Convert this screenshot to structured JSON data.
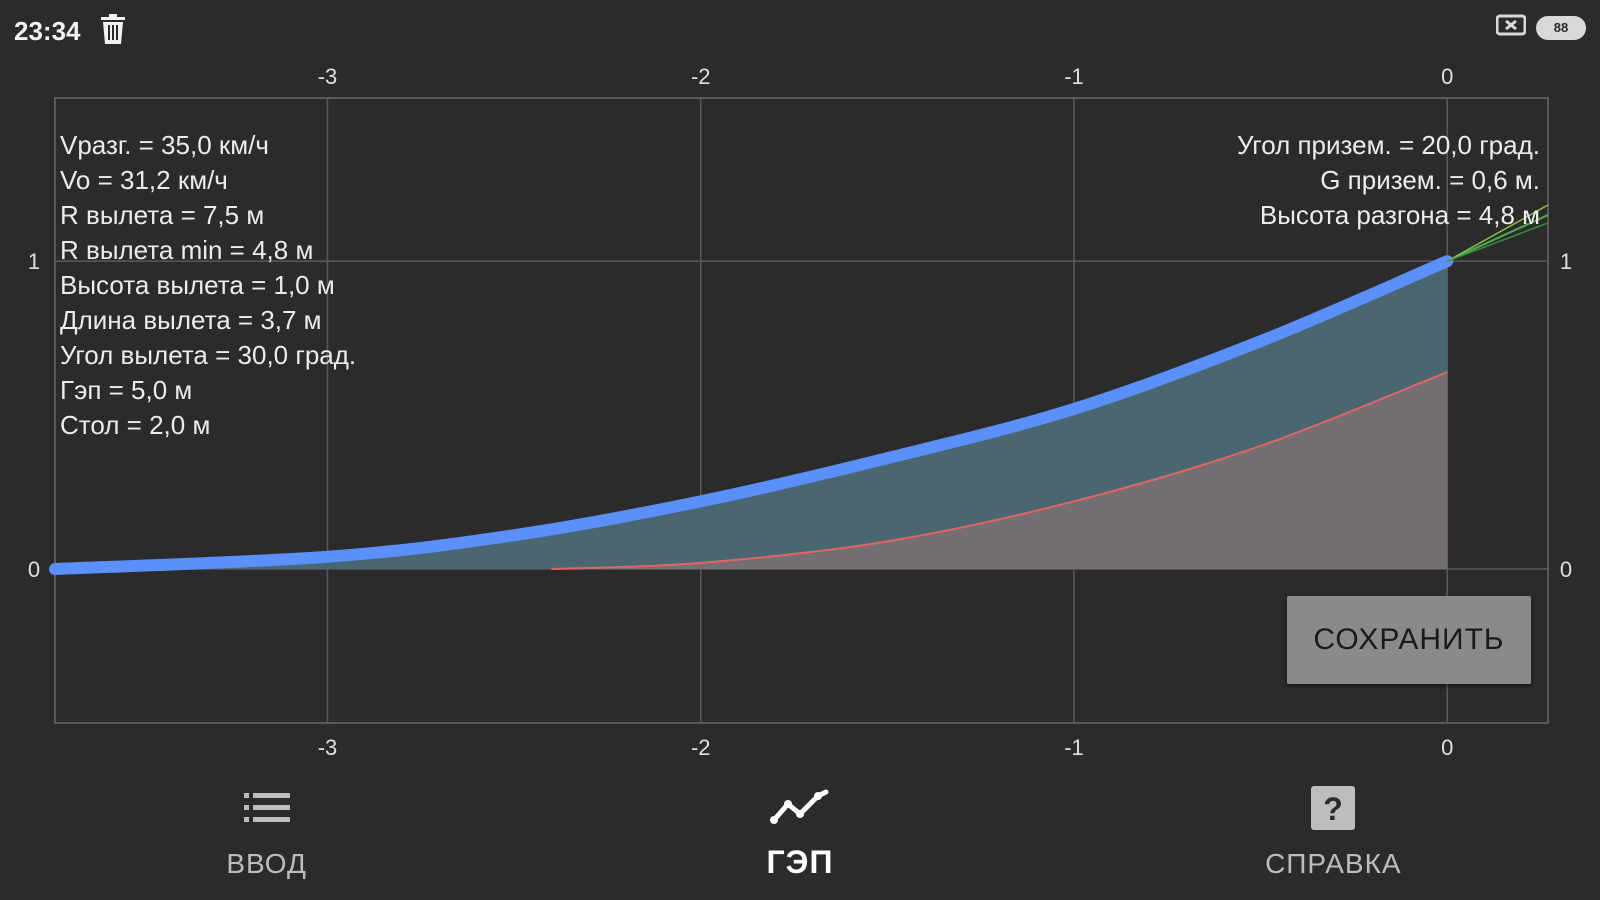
{
  "status": {
    "time": "23:34",
    "battery": "88"
  },
  "chart_data": {
    "type": "area",
    "x_ticks": [
      "-3",
      "-2",
      "-1",
      "0"
    ],
    "y_ticks": [
      "0",
      "1"
    ],
    "xlim": [
      -3.73,
      0.27
    ],
    "ylim": [
      -0.5,
      1.53
    ],
    "series": [
      {
        "color": "#5b8ff9",
        "x": [
          -3.73,
          -3.0,
          -2.5,
          -2.0,
          -1.5,
          -1.0,
          -0.5,
          0.0
        ],
        "y": [
          0.0,
          0.04,
          0.11,
          0.22,
          0.36,
          0.52,
          0.74,
          1.0
        ]
      },
      {
        "color": "#e06666",
        "x": [
          -2.4,
          -2.0,
          -1.5,
          -1.0,
          -0.5,
          0.0
        ],
        "y": [
          0.0,
          0.02,
          0.09,
          0.22,
          0.4,
          0.64
        ]
      },
      {
        "color": "#4caf50",
        "x": [
          0.0,
          0.27
        ],
        "y": [
          1.0,
          1.15
        ]
      }
    ],
    "fill_upper_color": "#4a6670",
    "fill_lower_color": "#756f73"
  },
  "info_left": [
    "Vразг. = 35,0 км/ч",
    "Vo = 31,2 км/ч",
    "R вылета = 7,5 м",
    "R вылета min = 4,8 м",
    "Высота вылета = 1,0 м",
    "Длина вылета = 3,7 м",
    "Угол вылета = 30,0 град.",
    "Гэп = 5,0 м",
    "Стол = 2,0 м"
  ],
  "info_right": [
    "Угол призем. = 20,0 град.",
    "G призем. = 0,6 м.",
    "Высота разгона = 4,8 м"
  ],
  "save_label": "СОХРАНИТЬ",
  "nav": {
    "items": [
      {
        "label": "ВВОД",
        "icon": "list-icon"
      },
      {
        "label": "ГЭП",
        "icon": "chart-line-icon"
      },
      {
        "label": "СПРАВКА",
        "icon": "help-icon",
        "icon_text": "?"
      }
    ]
  }
}
